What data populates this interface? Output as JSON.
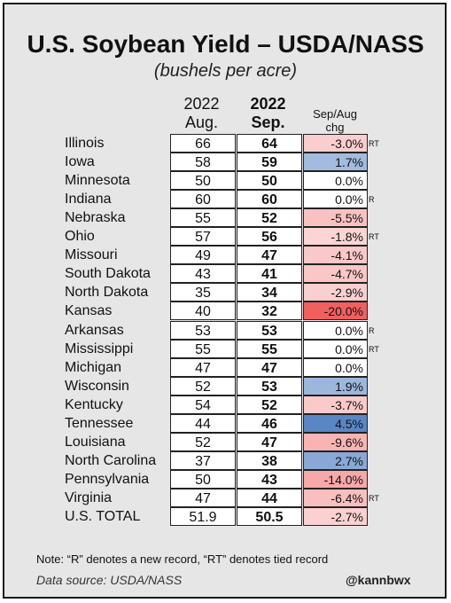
{
  "title": "U.S. Soybean Yield – USDA/NASS",
  "subtitle": "(bushels per acre)",
  "headers": {
    "aug_line1": "2022",
    "aug_line2": "Aug.",
    "sep_line1": "2022",
    "sep_line2": "Sep.",
    "chg_line1": "Sep/Aug",
    "chg_line2": "chg"
  },
  "colors": {
    "background": "#e6e6e6",
    "positive": "#5b86c5",
    "negative": "#f06060",
    "neutral": "#ffffff"
  },
  "chart_data": {
    "type": "table",
    "title": "U.S. Soybean Yield – USDA/NASS",
    "subtitle": "(bushels per acre)",
    "columns": [
      "2022 Aug.",
      "2022 Sep.",
      "Sep/Aug chg"
    ],
    "rows": [
      {
        "state": "Illinois",
        "aug": "66",
        "sep": "64",
        "chg": "-3.0%",
        "pct": -3.0,
        "record": "RT"
      },
      {
        "state": "Iowa",
        "aug": "58",
        "sep": "59",
        "chg": "1.7%",
        "pct": 1.7,
        "record": ""
      },
      {
        "state": "Minnesota",
        "aug": "50",
        "sep": "50",
        "chg": "0.0%",
        "pct": 0.0,
        "record": ""
      },
      {
        "state": "Indiana",
        "aug": "60",
        "sep": "60",
        "chg": "0.0%",
        "pct": 0.0,
        "record": "R"
      },
      {
        "state": "Nebraska",
        "aug": "55",
        "sep": "52",
        "chg": "-5.5%",
        "pct": -5.5,
        "record": ""
      },
      {
        "state": "Ohio",
        "aug": "57",
        "sep": "56",
        "chg": "-1.8%",
        "pct": -1.8,
        "record": "RT"
      },
      {
        "state": "Missouri",
        "aug": "49",
        "sep": "47",
        "chg": "-4.1%",
        "pct": -4.1,
        "record": ""
      },
      {
        "state": "South Dakota",
        "aug": "43",
        "sep": "41",
        "chg": "-4.7%",
        "pct": -4.7,
        "record": ""
      },
      {
        "state": "North Dakota",
        "aug": "35",
        "sep": "34",
        "chg": "-2.9%",
        "pct": -2.9,
        "record": ""
      },
      {
        "state": "Kansas",
        "aug": "40",
        "sep": "32",
        "chg": "-20.0%",
        "pct": -20.0,
        "record": ""
      },
      {
        "state": "Arkansas",
        "aug": "53",
        "sep": "53",
        "chg": "0.0%",
        "pct": 0.0,
        "record": "R"
      },
      {
        "state": "Mississippi",
        "aug": "55",
        "sep": "55",
        "chg": "0.0%",
        "pct": 0.0,
        "record": "RT"
      },
      {
        "state": "Michigan",
        "aug": "47",
        "sep": "47",
        "chg": "0.0%",
        "pct": 0.0,
        "record": ""
      },
      {
        "state": "Wisconsin",
        "aug": "52",
        "sep": "53",
        "chg": "1.9%",
        "pct": 1.9,
        "record": ""
      },
      {
        "state": "Kentucky",
        "aug": "54",
        "sep": "52",
        "chg": "-3.7%",
        "pct": -3.7,
        "record": ""
      },
      {
        "state": "Tennessee",
        "aug": "44",
        "sep": "46",
        "chg": "4.5%",
        "pct": 4.5,
        "record": ""
      },
      {
        "state": "Louisiana",
        "aug": "52",
        "sep": "47",
        "chg": "-9.6%",
        "pct": -9.6,
        "record": ""
      },
      {
        "state": "North Carolina",
        "aug": "37",
        "sep": "38",
        "chg": "2.7%",
        "pct": 2.7,
        "record": ""
      },
      {
        "state": "Pennsylvania",
        "aug": "50",
        "sep": "43",
        "chg": "-14.0%",
        "pct": -14.0,
        "record": ""
      },
      {
        "state": "Virginia",
        "aug": "47",
        "sep": "44",
        "chg": "-6.4%",
        "pct": -6.4,
        "record": "RT"
      },
      {
        "state": "U.S. TOTAL",
        "aug": "51.9",
        "sep": "50.5",
        "chg": "-2.7%",
        "pct": -2.7,
        "record": ""
      }
    ]
  },
  "note": "Note: “R” denotes a new record, “RT” denotes tied record",
  "source": "Data source: USDA/NASS",
  "handle": "@kannbwx"
}
